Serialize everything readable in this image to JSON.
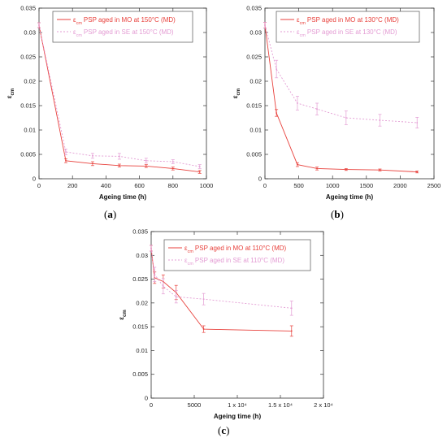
{
  "colors": {
    "mo": "#e8413c",
    "se": "#e39bd3",
    "axis": "#333333"
  },
  "captions": [
    {
      "open": "(",
      "letter": "a",
      "close": ")"
    },
    {
      "open": "(",
      "letter": "b",
      "close": ")"
    },
    {
      "open": "(",
      "letter": "c",
      "close": ")"
    }
  ],
  "chart_data": [
    {
      "type": "line",
      "xlabel": "Ageing time (h)",
      "ylabel": "ε",
      "ylabel_sub": "cm",
      "xlim": [
        0,
        1000
      ],
      "ylim": [
        0,
        0.035
      ],
      "xticks": [
        0,
        200,
        400,
        600,
        800,
        1000
      ],
      "xtick_labels": [
        "0",
        "200",
        "400",
        "600",
        "800",
        "1000"
      ],
      "yticks": [
        0,
        0.005,
        0.01,
        0.015,
        0.02,
        0.025,
        0.03,
        0.035
      ],
      "ytick_labels": [
        "0",
        "0.005",
        "0.01",
        "0.015",
        "0.02",
        "0.025",
        "0.03",
        "0.035"
      ],
      "legend_position": "top-right",
      "series": [
        {
          "name": "PSP aged in MO at 150°C (MD)",
          "legend_prefix": "ε",
          "legend_sub": "cm",
          "key": "mo",
          "dashed": false,
          "x": [
            0,
            160,
            320,
            480,
            640,
            800,
            960
          ],
          "y": [
            0.0315,
            0.0037,
            0.0031,
            0.0027,
            0.0026,
            0.0021,
            0.0014
          ],
          "err": [
            0.0005,
            0.0004,
            0.0004,
            0.0003,
            0.0003,
            0.0003,
            0.0003
          ]
        },
        {
          "name": "PSP aged in SE at 150°C (MD)",
          "legend_prefix": "ε",
          "legend_sub": "cm",
          "key": "se",
          "dashed": true,
          "x": [
            0,
            160,
            320,
            480,
            640,
            800,
            960
          ],
          "y": [
            0.0315,
            0.0055,
            0.0047,
            0.0046,
            0.0037,
            0.0035,
            0.0025
          ],
          "err": [
            0.0005,
            0.0006,
            0.0005,
            0.0006,
            0.0005,
            0.0004,
            0.0004
          ]
        }
      ]
    },
    {
      "type": "line",
      "xlabel": "Ageing time (h)",
      "ylabel": "ε",
      "ylabel_sub": "cm",
      "xlim": [
        0,
        2500
      ],
      "ylim": [
        0,
        0.035
      ],
      "xticks": [
        0,
        500,
        1000,
        1500,
        2000,
        2500
      ],
      "xtick_labels": [
        "0",
        "500",
        "1000",
        "1500",
        "2000",
        "2500"
      ],
      "yticks": [
        0,
        0.005,
        0.01,
        0.015,
        0.02,
        0.025,
        0.03,
        0.035
      ],
      "ytick_labels": [
        "0",
        "0.005",
        "0.01",
        "0.015",
        "0.02",
        "0.025",
        "0.03",
        "0.035"
      ],
      "legend_position": "top-right",
      "series": [
        {
          "name": "PSP aged in MO at 130°C (MD)",
          "legend_prefix": "ε",
          "legend_sub": "cm",
          "key": "mo",
          "dashed": false,
          "x": [
            0,
            170,
            480,
            770,
            1200,
            1700,
            2250
          ],
          "y": [
            0.0315,
            0.0135,
            0.0029,
            0.0021,
            0.0019,
            0.0018,
            0.0014
          ],
          "err": [
            0.0006,
            0.0007,
            0.0004,
            0.0003,
            0.0002,
            0.0002,
            0.0002
          ]
        },
        {
          "name": "PSP aged in SE at 130°C (MD)",
          "legend_prefix": "ε",
          "legend_sub": "cm",
          "key": "se",
          "dashed": true,
          "x": [
            0,
            170,
            480,
            770,
            1200,
            1700,
            2250
          ],
          "y": [
            0.0315,
            0.0225,
            0.0155,
            0.0143,
            0.0125,
            0.012,
            0.0115
          ],
          "err": [
            0.0006,
            0.0018,
            0.0014,
            0.0012,
            0.0014,
            0.0012,
            0.0011
          ]
        }
      ]
    },
    {
      "type": "line",
      "xlabel": "Ageing time (h)",
      "ylabel": "ε",
      "ylabel_sub": "cm",
      "xlim": [
        0,
        20000
      ],
      "ylim": [
        0,
        0.035
      ],
      "xticks": [
        0,
        5000,
        10000,
        15000,
        20000
      ],
      "xtick_labels": [
        "0",
        "5000",
        "1 x 10⁴",
        "1.5 x 10⁴",
        "2 x 10⁴"
      ],
      "yticks": [
        0,
        0.005,
        0.01,
        0.015,
        0.02,
        0.025,
        0.03,
        0.035
      ],
      "ytick_labels": [
        "0",
        "0.005",
        "0.01",
        "0.015",
        "0.02",
        "0.025",
        "0.03",
        "0.035"
      ],
      "legend_position": "top-right",
      "series": [
        {
          "name": "PSP aged in MO at 110°C (MD)",
          "legend_prefix": "ε",
          "legend_sub": "cm",
          "key": "mo",
          "dashed": false,
          "x": [
            0,
            400,
            1400,
            2900,
            6100,
            16300
          ],
          "y": [
            0.0315,
            0.0253,
            0.0245,
            0.0222,
            0.0145,
            0.0141
          ],
          "err": [
            0.0006,
            0.0012,
            0.0014,
            0.0015,
            0.0007,
            0.0011
          ]
        },
        {
          "name": "PSP aged in SE at 110°C (MD)",
          "legend_prefix": "ε",
          "legend_sub": "cm",
          "key": "se",
          "dashed": true,
          "x": [
            0,
            400,
            1400,
            2900,
            6100,
            16300
          ],
          "y": [
            0.0315,
            0.026,
            0.0235,
            0.0213,
            0.0208,
            0.0189
          ],
          "err": [
            0.0006,
            0.0015,
            0.0016,
            0.0013,
            0.0012,
            0.0015
          ]
        }
      ]
    }
  ]
}
